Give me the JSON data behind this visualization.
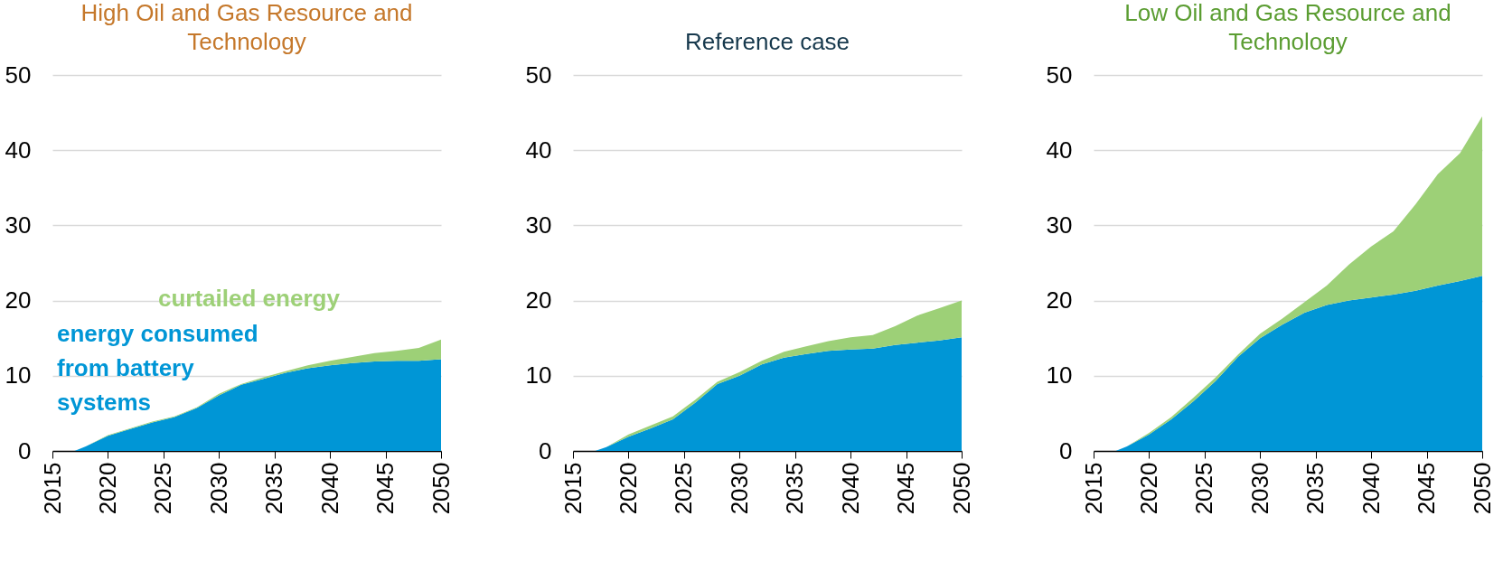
{
  "chart_data": [
    {
      "type": "area",
      "title": "High Oil and Gas Resource and Technology",
      "stacked": true,
      "grid": "y",
      "xlim": [
        2015,
        2050
      ],
      "xticks": [
        2015,
        2020,
        2025,
        2030,
        2035,
        2040,
        2045,
        2050
      ],
      "ylim": [
        0,
        50
      ],
      "yticks": [
        0,
        10,
        20,
        30,
        40,
        50
      ],
      "x": [
        2015,
        2017,
        2018,
        2020,
        2022,
        2024,
        2026,
        2028,
        2030,
        2032,
        2034,
        2036,
        2038,
        2040,
        2042,
        2044,
        2046,
        2048,
        2050
      ],
      "series": [
        {
          "name": "energy consumed from battery systems",
          "color": "#0096d6",
          "values": [
            0,
            0,
            0.6,
            2.0,
            2.9,
            3.8,
            4.5,
            5.7,
            7.4,
            8.8,
            9.6,
            10.4,
            11.0,
            11.4,
            11.7,
            11.9,
            12.0,
            12.0,
            12.2
          ]
        },
        {
          "name": "curtailed energy",
          "color": "#9dd077",
          "values": [
            0,
            0,
            0,
            0.1,
            0.1,
            0.1,
            0.1,
            0.1,
            0.2,
            0.1,
            0.2,
            0.2,
            0.4,
            0.6,
            0.8,
            1.1,
            1.3,
            1.7,
            2.6
          ]
        }
      ]
    },
    {
      "type": "area",
      "title": "Reference case",
      "stacked": true,
      "grid": "y",
      "xlim": [
        2015,
        2050
      ],
      "xticks": [
        2015,
        2020,
        2025,
        2030,
        2035,
        2040,
        2045,
        2050
      ],
      "ylim": [
        0,
        50
      ],
      "yticks": [
        0,
        10,
        20,
        30,
        40,
        50
      ],
      "x": [
        2015,
        2017,
        2018,
        2020,
        2022,
        2024,
        2026,
        2028,
        2030,
        2032,
        2034,
        2036,
        2038,
        2040,
        2042,
        2044,
        2046,
        2048,
        2050
      ],
      "series": [
        {
          "color": "#0096d6",
          "values": [
            0,
            0,
            0.5,
            1.9,
            3.0,
            4.2,
            6.4,
            8.9,
            10.0,
            11.5,
            12.4,
            12.9,
            13.3,
            13.5,
            13.6,
            14.1,
            14.4,
            14.7,
            15.1
          ]
        },
        {
          "color": "#9dd077",
          "values": [
            0,
            0,
            0,
            0.3,
            0.4,
            0.4,
            0.4,
            0.3,
            0.5,
            0.5,
            0.8,
            1.0,
            1.3,
            1.6,
            1.8,
            2.5,
            3.6,
            4.3,
            4.9
          ]
        }
      ]
    },
    {
      "type": "area",
      "title": "Low Oil and Gas Resource and Technology",
      "stacked": true,
      "grid": "y",
      "xlim": [
        2015,
        2050
      ],
      "xticks": [
        2015,
        2020,
        2025,
        2030,
        2035,
        2040,
        2045,
        2050
      ],
      "ylim": [
        0,
        50
      ],
      "yticks": [
        0,
        10,
        20,
        30,
        40,
        50
      ],
      "x": [
        2015,
        2017,
        2018,
        2020,
        2022,
        2024,
        2026,
        2028,
        2030,
        2032,
        2034,
        2036,
        2038,
        2040,
        2042,
        2044,
        2046,
        2048,
        2050
      ],
      "series": [
        {
          "color": "#0096d6",
          "values": [
            0,
            0,
            0.6,
            2.2,
            4.2,
            6.6,
            9.3,
            12.5,
            15.0,
            16.8,
            18.4,
            19.4,
            20.0,
            20.4,
            20.8,
            21.3,
            22.0,
            22.6,
            23.3
          ]
        },
        {
          "color": "#9dd077",
          "values": [
            0,
            0,
            0,
            0.2,
            0.3,
            0.5,
            0.5,
            0.3,
            0.6,
            0.8,
            1.4,
            2.6,
            4.8,
            6.8,
            8.4,
            11.5,
            14.8,
            17.0,
            21.2
          ]
        }
      ]
    }
  ]
}
